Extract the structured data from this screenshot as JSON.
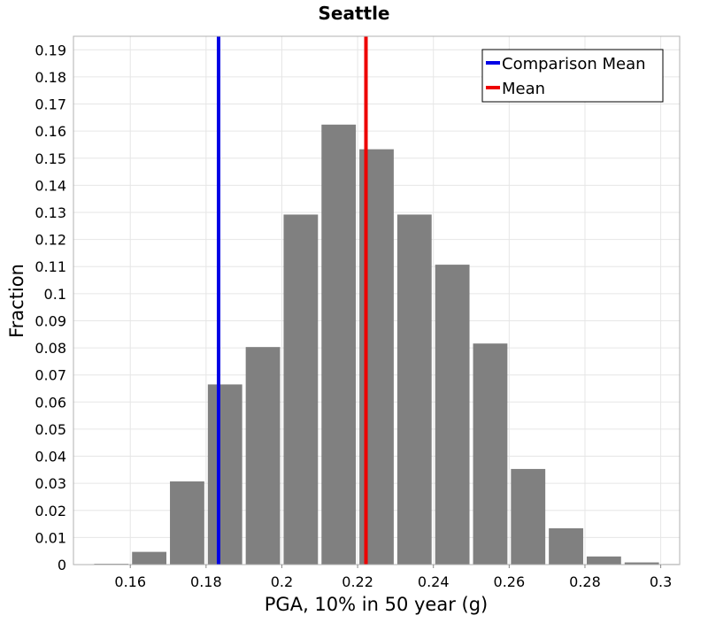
{
  "chart_data": {
    "type": "bar",
    "title": "Seattle",
    "xlabel": "PGA, 10% in 50 year (g)",
    "ylabel": "Fraction",
    "xlim": [
      0.145,
      0.305
    ],
    "ylim": [
      0,
      0.195
    ],
    "x_ticks": [
      "0.16",
      "0.18",
      "0.2",
      "0.22",
      "0.24",
      "0.26",
      "0.28",
      "0.3"
    ],
    "y_ticks": [
      "0",
      "0.01",
      "0.02",
      "0.03",
      "0.04",
      "0.05",
      "0.06",
      "0.07",
      "0.08",
      "0.09",
      "0.1",
      "0.11",
      "0.12",
      "0.13",
      "0.14",
      "0.15",
      "0.16",
      "0.17",
      "0.18",
      "0.19"
    ],
    "bin_width": 0.01,
    "bar_color": "#808080",
    "bins": [
      {
        "x": 0.155,
        "value": 0.0003
      },
      {
        "x": 0.165,
        "value": 0.0047
      },
      {
        "x": 0.175,
        "value": 0.0307
      },
      {
        "x": 0.185,
        "value": 0.0665
      },
      {
        "x": 0.195,
        "value": 0.0803
      },
      {
        "x": 0.205,
        "value": 0.1292
      },
      {
        "x": 0.215,
        "value": 0.1624
      },
      {
        "x": 0.225,
        "value": 0.1533
      },
      {
        "x": 0.235,
        "value": 0.1292
      },
      {
        "x": 0.245,
        "value": 0.1107
      },
      {
        "x": 0.255,
        "value": 0.0816
      },
      {
        "x": 0.265,
        "value": 0.0353
      },
      {
        "x": 0.275,
        "value": 0.0134
      },
      {
        "x": 0.285,
        "value": 0.003
      },
      {
        "x": 0.295,
        "value": 0.0008
      },
      {
        "x": 0.305,
        "value": 0.0002
      }
    ],
    "vlines": [
      {
        "name": "Comparison Mean",
        "x": 0.1833,
        "color": "#0000e6"
      },
      {
        "name": "Mean",
        "x": 0.2222,
        "color": "#ee0000"
      }
    ],
    "legend_position": "top-right",
    "grid": true
  }
}
